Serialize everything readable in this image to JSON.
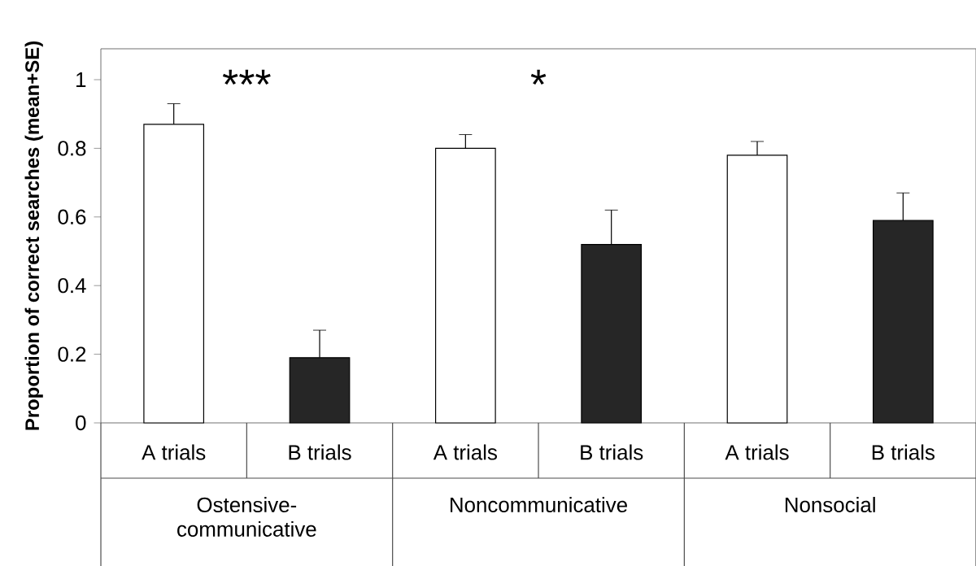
{
  "chart_data": {
    "type": "bar",
    "ylabel": "Proportion of correct searches (mean+SE)",
    "categories": [
      "A trials",
      "B trials",
      "A trials",
      "B trials",
      "A trials",
      "B trials"
    ],
    "values": [
      0.87,
      0.19,
      0.8,
      0.52,
      0.78,
      0.59
    ],
    "colors": [
      "#ffffff",
      "#262626",
      "#ffffff",
      "#262626",
      "#ffffff",
      "#262626"
    ],
    "errors": [
      [
        0.87,
        0.93
      ],
      [
        0.19,
        0.27
      ],
      [
        0.8,
        0.84
      ],
      [
        0.52,
        0.62
      ],
      [
        0.78,
        0.82
      ],
      [
        0.59,
        0.67
      ]
    ],
    "ylim": [
      0,
      1.09
    ],
    "yticks": [
      0,
      0.2,
      0.4,
      0.6,
      0.8,
      1
    ],
    "annotations": [
      "***",
      "*",
      "Ostensive-communicative",
      "Noncommunicative",
      "Nonsocial"
    ]
  }
}
